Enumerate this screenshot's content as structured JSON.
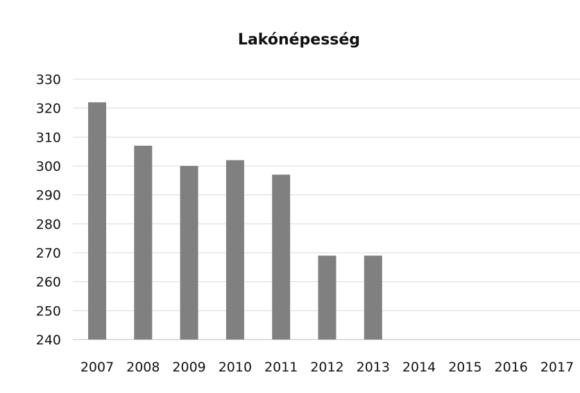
{
  "chart_data": {
    "type": "bar",
    "title": "Lakónépesség",
    "categories": [
      "2007",
      "2008",
      "2009",
      "2010",
      "2011",
      "2012",
      "2013",
      "2014",
      "2015",
      "2016",
      "2017"
    ],
    "values": [
      322,
      307,
      300,
      302,
      297,
      269,
      269,
      null,
      null,
      null,
      null
    ],
    "ylim": [
      240,
      330
    ],
    "yticks": [
      330,
      320,
      310,
      300,
      290,
      280,
      270,
      260,
      250,
      240
    ],
    "xlabel": "",
    "ylabel": "",
    "grid": true,
    "legend": "none",
    "bar_color": "#808080"
  }
}
